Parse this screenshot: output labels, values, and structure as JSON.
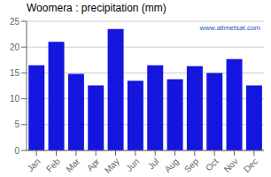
{
  "chart_data": {
    "type": "bar",
    "title": "Woomera : precipitation (mm)",
    "categories": [
      "Jan",
      "Feb",
      "Mar",
      "Apr",
      "May",
      "Jun",
      "Jul",
      "Aug",
      "Sep",
      "Oct",
      "Nov",
      "Dec"
    ],
    "values": [
      16.5,
      21.0,
      14.8,
      12.6,
      23.5,
      13.5,
      16.5,
      13.8,
      16.3,
      15.0,
      17.7,
      12.6
    ],
    "color": "#1515e0",
    "ylim": [
      0,
      25
    ],
    "yticks": [
      0,
      5,
      10,
      15,
      20,
      25
    ],
    "grid": true,
    "annotations": [
      {
        "text": "www.allmetsat.com",
        "color": "#2255cc"
      }
    ]
  }
}
